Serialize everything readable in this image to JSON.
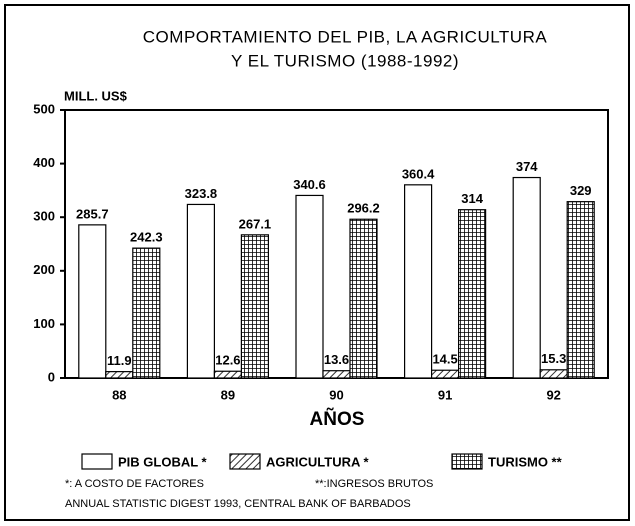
{
  "chart_data": {
    "type": "bar",
    "title": [
      "COMPORTAMIENTO DEL PIB, LA AGRICULTURA",
      "Y EL TURISMO (1988-1992)"
    ],
    "y_label": "MILL. US$",
    "x_label": "AÑOS",
    "categories": [
      "88",
      "89",
      "90",
      "91",
      "92"
    ],
    "series": [
      {
        "name": "PIB GLOBAL *",
        "color": "#000000",
        "pattern": "none",
        "values": [
          285.7,
          323.8,
          340.6,
          360.4,
          374
        ]
      },
      {
        "name": "AGRICULTURA *",
        "color": "#000000",
        "pattern": "hatch",
        "values": [
          11.9,
          12.6,
          13.6,
          14.5,
          15.3
        ]
      },
      {
        "name": "TURISMO **",
        "color": "#000000",
        "pattern": "cross",
        "values": [
          242.3,
          267.1,
          296.2,
          314,
          329
        ]
      }
    ],
    "ylim": [
      0,
      500
    ],
    "yticks": [
      0,
      100,
      200,
      300,
      400,
      500
    ],
    "grid": false,
    "notes": [
      "*: A COSTO DE FACTORES",
      "**:INGRESOS BRUTOS",
      "ANNUAL STATISTIC DIGEST 1993, CENTRAL BANK OF BARBADOS"
    ]
  }
}
